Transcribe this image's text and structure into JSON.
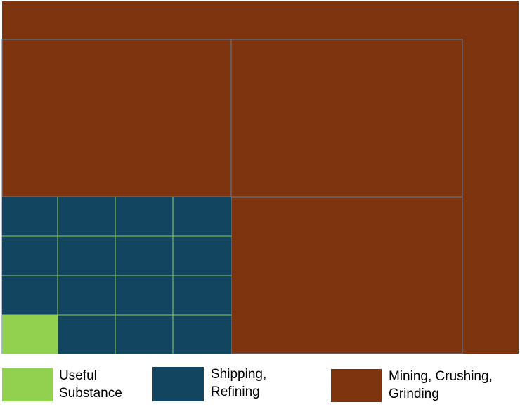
{
  "legend": {
    "items": [
      {
        "label": "Useful Substance"
      },
      {
        "label": "Shipping, Refining"
      },
      {
        "label": "Mining, Crushing, Grinding"
      }
    ]
  }
}
